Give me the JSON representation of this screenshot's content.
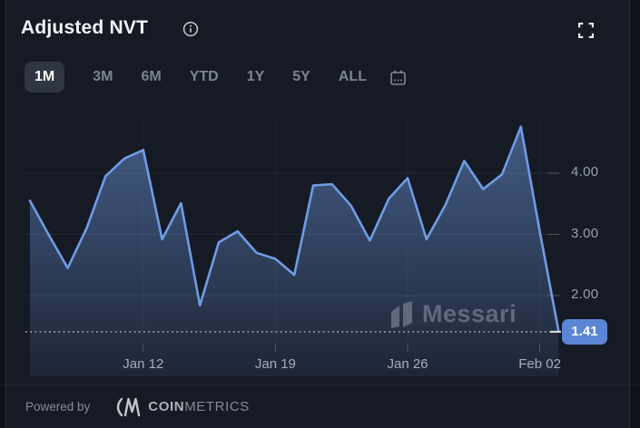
{
  "header": {
    "title": "Adjusted NVT"
  },
  "icons": {
    "info": "info-icon",
    "fullscreen": "fullscreen-icon",
    "calendar": "calendar-icon",
    "messari_logo": "messari-logo-icon",
    "coinmetrics_logo": "coinmetrics-logo-icon"
  },
  "toolbar": {
    "ranges": [
      {
        "label": "1M",
        "active": true
      },
      {
        "label": "3M",
        "active": false
      },
      {
        "label": "6M",
        "active": false
      },
      {
        "label": "YTD",
        "active": false
      },
      {
        "label": "1Y",
        "active": false
      },
      {
        "label": "5Y",
        "active": false
      },
      {
        "label": "ALL",
        "active": false
      }
    ]
  },
  "chart_data": {
    "type": "area",
    "title": "Adjusted NVT",
    "x": [
      "Jan 6",
      "Jan 7",
      "Jan 8",
      "Jan 9",
      "Jan 10",
      "Jan 11",
      "Jan 12",
      "Jan 13",
      "Jan 14",
      "Jan 15",
      "Jan 16",
      "Jan 17",
      "Jan 18",
      "Jan 19",
      "Jan 20",
      "Jan 21",
      "Jan 22",
      "Jan 23",
      "Jan 24",
      "Jan 25",
      "Jan 26",
      "Jan 27",
      "Jan 28",
      "Jan 29",
      "Jan 30",
      "Jan 31",
      "Feb 1",
      "Feb 2",
      "Feb 3"
    ],
    "values": [
      3.55,
      2.99,
      2.45,
      3.1,
      3.95,
      4.24,
      4.38,
      2.92,
      3.51,
      1.84,
      2.87,
      3.05,
      2.7,
      2.6,
      2.34,
      3.8,
      3.82,
      3.47,
      2.9,
      3.58,
      3.92,
      2.92,
      3.48,
      4.2,
      3.74,
      3.98,
      4.76,
      3.05,
      1.41
    ],
    "yticks": [
      4.0,
      3.0,
      2.0
    ],
    "ytick_labels": [
      "4.00",
      "3.00",
      "2.00"
    ],
    "xticks": [
      "Jan 12",
      "Jan 19",
      "Jan 26",
      "Feb 02"
    ],
    "xtick_indices": [
      6,
      13,
      20,
      27
    ],
    "ylim": [
      1.2,
      5.0
    ],
    "grid": "horizontal",
    "legend": "none",
    "last_value": "1.41",
    "line_color": "#6f9ce4",
    "fill_top_color": "rgba(104,146,212,0.55)",
    "fill_bottom_color": "rgba(104,146,212,0.10)",
    "badge_color": "#5b86d5"
  },
  "watermark": {
    "text": "Messari"
  },
  "footer": {
    "powered_by": "Powered by",
    "brand_bold": "COIN",
    "brand_light": "METRICS"
  },
  "colors": {
    "background": "#151a25",
    "page": "#0d1118",
    "active_tab_bg": "#2f3642",
    "tab_text": "#7d8591",
    "title_text": "#f1f3f6",
    "axis_text": "#99a1ad",
    "gridline": "rgba(255,255,255,0.08)"
  }
}
